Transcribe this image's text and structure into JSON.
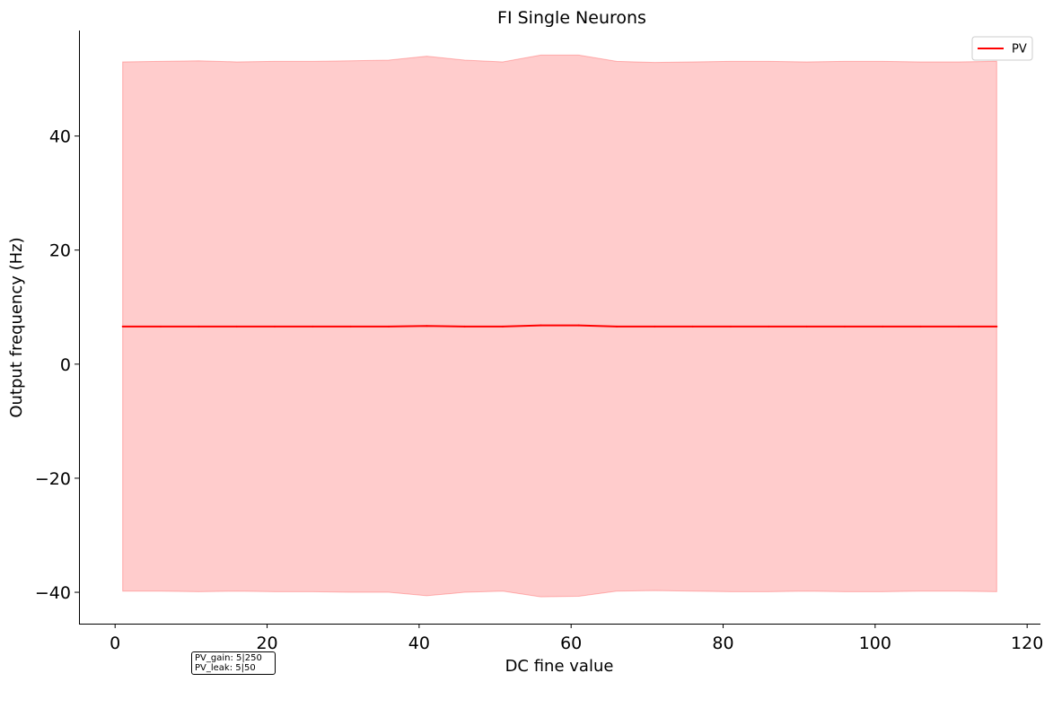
{
  "chart_data": {
    "type": "line",
    "title": "FI Single Neurons",
    "xlabel": "DC fine value",
    "ylabel": "Output frequency (Hz)",
    "xlim": [
      -4.75,
      121.75
    ],
    "ylim": [
      -45.5,
      58.5
    ],
    "x_ticks": [
      0,
      20,
      40,
      60,
      80,
      100,
      120
    ],
    "y_ticks": [
      -40,
      -20,
      0,
      20,
      40
    ],
    "grid": false,
    "legend_position": "top-right",
    "series": [
      {
        "name": "PV",
        "color": "#ff0000",
        "fill_color": "#ff0000",
        "x": [
          1,
          6,
          11,
          16,
          21,
          26,
          31,
          36,
          41,
          46,
          51,
          56,
          61,
          66,
          71,
          76,
          81,
          86,
          91,
          96,
          101,
          106,
          111,
          116
        ],
        "mean": [
          6.6,
          6.6,
          6.6,
          6.6,
          6.6,
          6.6,
          6.6,
          6.6,
          6.7,
          6.6,
          6.6,
          6.8,
          6.8,
          6.6,
          6.6,
          6.6,
          6.6,
          6.6,
          6.6,
          6.6,
          6.6,
          6.6,
          6.6,
          6.6
        ],
        "upper": [
          53.0,
          53.1,
          53.2,
          53.0,
          53.1,
          53.1,
          53.2,
          53.3,
          54.0,
          53.3,
          53.0,
          54.2,
          54.2,
          53.1,
          52.9,
          53.0,
          53.1,
          53.1,
          53.0,
          53.1,
          53.1,
          53.0,
          53.0,
          53.1
        ],
        "lower": [
          -39.8,
          -39.8,
          -39.9,
          -39.8,
          -39.9,
          -39.9,
          -40.0,
          -40.0,
          -40.6,
          -40.0,
          -39.8,
          -40.8,
          -40.7,
          -39.8,
          -39.7,
          -39.8,
          -39.9,
          -39.9,
          -39.8,
          -39.9,
          -39.9,
          -39.8,
          -39.8,
          -39.9
        ]
      }
    ],
    "annotation": [
      "PV_gain: 5|250",
      "PV_leak: 5|50"
    ]
  }
}
